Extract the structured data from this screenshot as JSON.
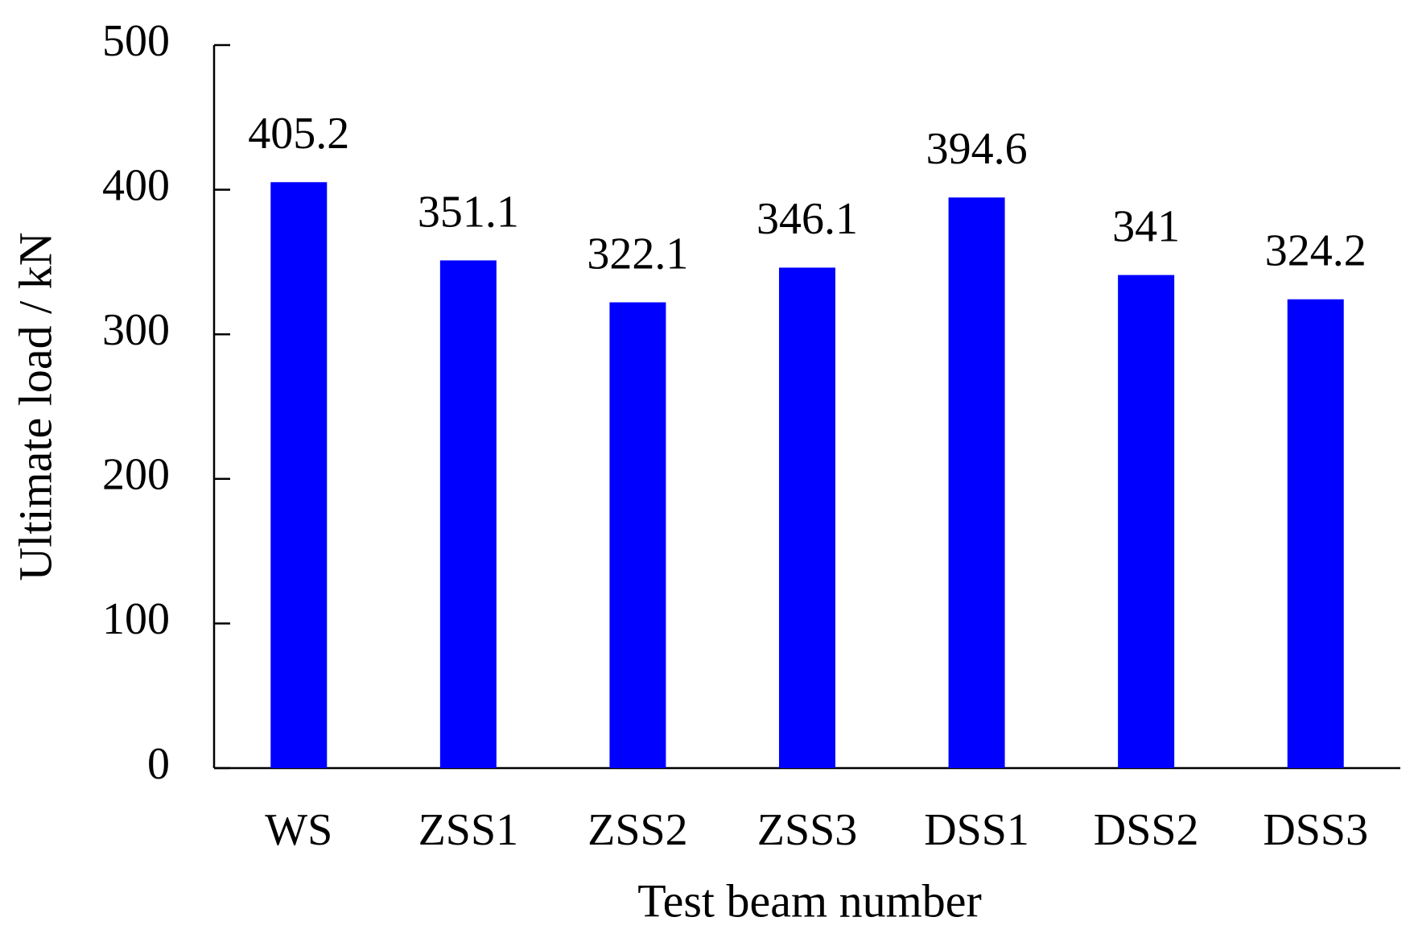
{
  "chart_data": {
    "type": "bar",
    "x_label": "Test beam number",
    "y_label": "Ultimate load / kN",
    "categories": [
      "WS",
      "ZSS1",
      "ZSS2",
      "ZSS3",
      "DSS1",
      "DSS2",
      "DSS3"
    ],
    "values": [
      405.2,
      351.1,
      322.1,
      346.1,
      394.6,
      341,
      324.2
    ],
    "color": "#0000ff",
    "ylim": [
      0,
      500
    ],
    "yticks": [
      0,
      100,
      200,
      300,
      400,
      500
    ],
    "grid": false
  }
}
